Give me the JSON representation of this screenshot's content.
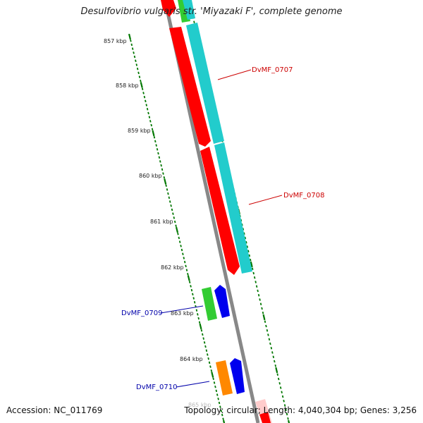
{
  "title": "Desulfovibrio vulgaris str. 'Miyazaki F', complete genome",
  "accession": "Accession: NC_011769",
  "summary": "Topology: circular; Length: 4,040,304 bp; Genes: 3,256",
  "kbp_ticks": [
    {
      "label": "857 kbp"
    },
    {
      "label": "858 kbp"
    },
    {
      "label": "859 kbp"
    },
    {
      "label": "860 kbp"
    },
    {
      "label": "861 kbp"
    },
    {
      "label": "862 kbp"
    },
    {
      "label": "863 kbp"
    },
    {
      "label": "864 kbp"
    },
    {
      "label": "865 kbp"
    }
  ],
  "genes": [
    {
      "label": "DvMF_0707",
      "label_color": "#cc0000",
      "cds_color": "#ff0000",
      "gene_color": "#22cccc",
      "strand": "+"
    },
    {
      "label": "DvMF_0708",
      "label_color": "#cc0000",
      "cds_color": "#ff0000",
      "gene_color": "#22cccc",
      "strand": "+"
    },
    {
      "label": "DvMF_0709",
      "label_color": "#0000aa",
      "cds_color": "#33cc33",
      "gene_color": "#0000ee",
      "strand": "-"
    },
    {
      "label": "DvMF_0710",
      "label_color": "#0000aa",
      "cds_color": "#ff8800",
      "gene_color": "#0000ee",
      "strand": "-"
    }
  ],
  "colors": {
    "backbone": "#888888",
    "tick_green": "#007700",
    "tick_text": "#222222"
  }
}
